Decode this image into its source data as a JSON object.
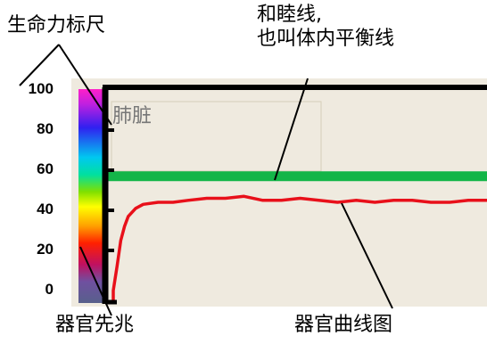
{
  "callouts": {
    "vitality_scale": "生命力标尺",
    "harmony_line_1": "和睦线,",
    "harmony_line_2": "也叫体内平衡线",
    "organ_omen": "器官先兆",
    "organ_curve": "器官曲线图"
  },
  "organ_label": "肺脏",
  "colors": {
    "harmony_line": "#13b548",
    "organ_curve": "#e8101a",
    "axis": "#000000",
    "panel_bg": "#efeadf"
  },
  "chart_data": {
    "type": "line",
    "ylim": [
      0,
      100
    ],
    "yticks": [
      0,
      20,
      40,
      60,
      80,
      100
    ],
    "ytick_labels": [
      "0",
      "20",
      "40",
      "60",
      "80",
      "100"
    ],
    "harmony_value": 57,
    "organ_curve": {
      "x": [
        0,
        1,
        2,
        3,
        4,
        6,
        8,
        12,
        16,
        20,
        25,
        30,
        35,
        40,
        45,
        50,
        55,
        60,
        65,
        70,
        75,
        80,
        85,
        90,
        95,
        100
      ],
      "y": [
        0,
        12,
        25,
        32,
        37,
        41,
        43,
        44,
        44,
        45,
        46,
        46,
        47,
        45,
        45,
        46,
        45,
        44,
        45,
        44,
        45,
        45,
        44,
        44,
        45,
        45
      ]
    }
  }
}
